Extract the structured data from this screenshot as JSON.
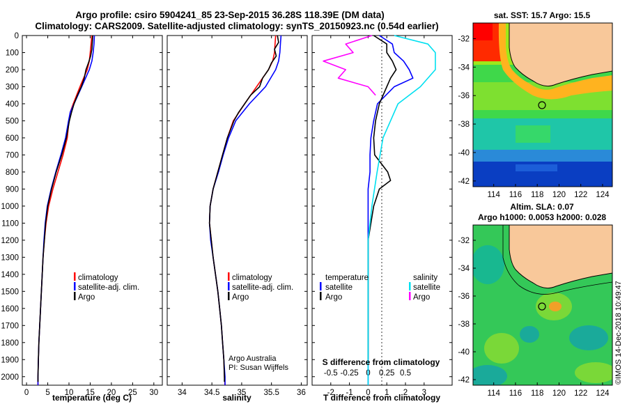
{
  "title": {
    "line1": "Argo profile: csiro 5904241_85 23-Sep-2015 36.28S 118.39E (DM data)",
    "line2": "Climatology: CARS2009. Satellite-adjusted climatology: synTS_20150923.nc (0.54d earlier)"
  },
  "chart_data": [
    {
      "type": "line",
      "name": "temperature",
      "xlabel": "temperature (deg C)",
      "ylabel": "",
      "xlim": [
        -1,
        32
      ],
      "ylim": [
        2050,
        0
      ],
      "xticks": [
        "0",
        "5",
        "10",
        "15",
        "20",
        "25",
        "30"
      ],
      "yticks": [
        "0",
        "100",
        "200",
        "300",
        "400",
        "500",
        "600",
        "700",
        "800",
        "900",
        "1000",
        "1100",
        "1200",
        "1300",
        "1400",
        "1500",
        "1600",
        "1700",
        "1800",
        "1900",
        "2000"
      ],
      "legend": [
        "climatology",
        "satellite-adj. clim.",
        "Argo"
      ],
      "series": [
        {
          "name": "climatology",
          "color": "#ff0000",
          "depth": [
            0,
            50,
            100,
            150,
            200,
            300,
            400,
            450,
            500,
            600,
            700,
            800,
            900,
            1000,
            1100,
            1200,
            1300,
            1400,
            1500,
            1600,
            1700,
            1800,
            1900,
            2000,
            2050
          ],
          "values": [
            15.4,
            15.2,
            15.0,
            14.8,
            14.3,
            12.6,
            11.0,
            10.3,
            10.0,
            9.6,
            8.6,
            7.4,
            6.2,
            5.2,
            4.6,
            4.2,
            3.9,
            3.7,
            3.5,
            3.3,
            3.1,
            2.9,
            2.8,
            2.7,
            2.7
          ]
        },
        {
          "name": "satellite-adj. clim.",
          "color": "#0000ff",
          "depth": [
            0,
            50,
            100,
            150,
            200,
            300,
            400,
            450,
            500,
            600,
            700,
            800,
            900,
            1000,
            1100,
            1200,
            1300,
            1400,
            1500,
            1600,
            1700,
            1800,
            1900,
            2000,
            2050
          ],
          "values": [
            16.0,
            15.9,
            15.7,
            15.4,
            14.8,
            13.0,
            11.2,
            10.3,
            9.9,
            9.2,
            8.1,
            6.9,
            5.8,
            4.9,
            4.4,
            4.1,
            3.9,
            3.7,
            3.5,
            3.3,
            3.1,
            2.9,
            2.8,
            2.7,
            2.7
          ]
        },
        {
          "name": "Argo",
          "color": "#000000",
          "depth": [
            0,
            40,
            80,
            120,
            160,
            200,
            250,
            300,
            350,
            400,
            450,
            500,
            600,
            700,
            800,
            900,
            1000,
            1100,
            1200,
            1300,
            1400,
            1500,
            1600,
            1700,
            1800,
            1900,
            2000,
            2030
          ],
          "values": [
            15.6,
            15.5,
            15.4,
            15.1,
            14.6,
            14.0,
            13.6,
            12.9,
            12.0,
            11.2,
            10.6,
            10.1,
            9.4,
            8.3,
            7.0,
            5.9,
            5.0,
            4.5,
            4.2,
            3.9,
            3.7,
            3.5,
            3.3,
            3.1,
            2.9,
            2.8,
            2.7,
            2.7
          ]
        }
      ]
    },
    {
      "type": "line",
      "name": "salinity",
      "xlabel": "salinity",
      "xlim": [
        33.75,
        36.1
      ],
      "ylim": [
        2050,
        0
      ],
      "xticks": [
        "34",
        "34.5",
        "35",
        "35.5",
        "36"
      ],
      "legend": [
        "climatology",
        "satellite-adj. clim.",
        "Argo"
      ],
      "series": [
        {
          "name": "climatology",
          "color": "#ff0000",
          "depth": [
            0,
            50,
            100,
            150,
            200,
            300,
            400,
            500,
            600,
            700,
            800,
            900,
            1000,
            1100,
            1200,
            1300,
            1400,
            1500,
            1600,
            1700,
            1800,
            1900,
            2000,
            2050
          ],
          "values": [
            35.57,
            35.56,
            35.55,
            35.52,
            35.45,
            35.25,
            35.05,
            34.86,
            34.76,
            34.68,
            34.6,
            34.52,
            34.47,
            34.46,
            34.49,
            34.52,
            34.56,
            34.6,
            34.63,
            34.66,
            34.68,
            34.7,
            34.71,
            34.72
          ]
        },
        {
          "name": "satellite-adj. clim.",
          "color": "#0000ff",
          "depth": [
            0,
            50,
            100,
            150,
            200,
            300,
            400,
            500,
            600,
            700,
            800,
            900,
            1000,
            1100,
            1200,
            1300,
            1400,
            1500,
            1600,
            1700,
            1800,
            1900,
            2000,
            2050
          ],
          "values": [
            35.66,
            35.65,
            35.64,
            35.62,
            35.57,
            35.4,
            35.13,
            34.9,
            34.78,
            34.69,
            34.61,
            34.52,
            34.47,
            34.46,
            34.48,
            34.52,
            34.56,
            34.6,
            34.63,
            34.66,
            34.68,
            34.7,
            34.72,
            34.72
          ]
        },
        {
          "name": "Argo",
          "color": "#000000",
          "depth": [
            0,
            40,
            80,
            120,
            160,
            200,
            250,
            300,
            350,
            400,
            450,
            500,
            600,
            700,
            800,
            900,
            1000,
            1100,
            1200,
            1300,
            1400,
            1500,
            1600,
            1700,
            1800,
            1900,
            2000,
            2030
          ],
          "values": [
            35.6,
            35.62,
            35.55,
            35.58,
            35.5,
            35.45,
            35.35,
            35.3,
            35.15,
            35.05,
            34.95,
            34.87,
            34.76,
            34.68,
            34.6,
            34.52,
            34.47,
            34.46,
            34.49,
            34.52,
            34.56,
            34.6,
            34.63,
            34.66,
            34.68,
            34.7,
            34.71,
            34.71
          ]
        }
      ],
      "annotation": [
        "Argo Australia",
        "PI: Susan Wijffels"
      ]
    },
    {
      "type": "line",
      "name": "difference",
      "xlabel": "T difference from climatology",
      "xlabel2": "S difference from climatology",
      "xlim": [
        -3,
        4.5
      ],
      "ylim": [
        2050,
        0
      ],
      "xticks": [
        "-2",
        "-1",
        "0",
        "1",
        "2",
        "3"
      ],
      "xticks2": [
        "-0.5",
        "-0.25",
        "0",
        "0.25",
        "0.5"
      ],
      "legend_temperature_title": "temperature",
      "legend_salinity_title": "salinity",
      "legend": [
        "satellite",
        "Argo"
      ],
      "series": [
        {
          "name": "T satellite",
          "color": "#0000ff",
          "depth": [
            0,
            50,
            100,
            150,
            200,
            250,
            300,
            400,
            500,
            600,
            700,
            800,
            900,
            1000,
            1200,
            1500,
            2000,
            2050
          ],
          "values": [
            0.6,
            1.3,
            1.4,
            1.9,
            2.2,
            2.4,
            1.4,
            0.5,
            0.3,
            0.15,
            0.1,
            0.1,
            0.0,
            0.0,
            0.0,
            0.0,
            0.0,
            0.0
          ]
        },
        {
          "name": "T Argo",
          "color": "#000000",
          "depth": [
            0,
            50,
            100,
            150,
            200,
            250,
            300,
            400,
            500,
            600,
            700,
            800,
            850,
            900,
            1000,
            1200,
            1500,
            1900
          ],
          "values": [
            0.3,
            1.0,
            1.0,
            1.3,
            1.5,
            1.2,
            1.0,
            0.6,
            0.4,
            0.3,
            0.35,
            1.05,
            1.2,
            0.6,
            0.3,
            0.0,
            0.0,
            0.0
          ]
        },
        {
          "name": "S satellite",
          "color": "#00e0f0",
          "depth": [
            0,
            50,
            100,
            200,
            300,
            400,
            500,
            600,
            800,
            1000,
            1200,
            1500,
            2000,
            2050
          ],
          "values": [
            0.35,
            0.8,
            0.9,
            0.9,
            0.7,
            0.4,
            0.3,
            0.2,
            0.12,
            0.05,
            0.0,
            0.0,
            0.0,
            0.0
          ]
        },
        {
          "name": "S Argo",
          "color": "#ff00ff",
          "depth": [
            0,
            50,
            100,
            150,
            200,
            250,
            300,
            350
          ],
          "values": [
            0.05,
            -0.3,
            -0.2,
            -0.6,
            -0.3,
            -0.4,
            0.0,
            0.1
          ]
        }
      ]
    }
  ],
  "maps": {
    "sst_title": "sat. SST: 15.7  Argo: 15.5",
    "sla_title": "Altim. SLA: 0.07",
    "sla_subtitle": "Argo h1000: 0.0053  h2000: 0.028",
    "lat_ticks": [
      "-32",
      "-34",
      "-36",
      "-38",
      "-40",
      "-42"
    ],
    "lon_ticks": [
      "114",
      "116",
      "118",
      "120",
      "122",
      "124"
    ]
  },
  "credit": "©IMOS 14-Dec-2018 10:49:47",
  "colors": {
    "land": "#f8c89a",
    "climatology": "#ff0000",
    "satellite": "#0000ff",
    "argo": "#000000"
  }
}
